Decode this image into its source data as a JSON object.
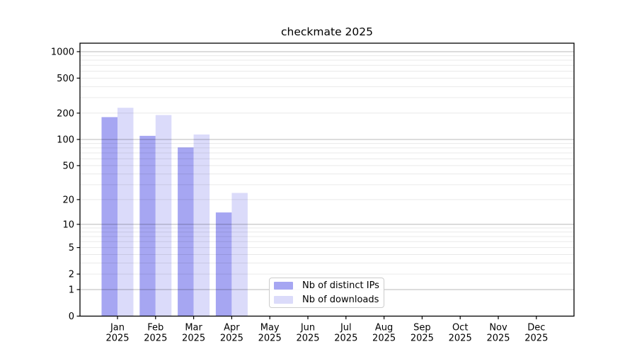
{
  "chart_data": {
    "type": "bar",
    "title": "checkmate 2025",
    "categories": [
      "Jan",
      "Feb",
      "Mar",
      "Apr",
      "May",
      "Jun",
      "Jul",
      "Aug",
      "Sep",
      "Oct",
      "Nov",
      "Dec"
    ],
    "xtick_year": "2025",
    "series": [
      {
        "name": "Nb of distinct IPs",
        "color": "#a6a6f2",
        "values": [
          180,
          110,
          81,
          14,
          null,
          null,
          null,
          null,
          null,
          null,
          null,
          null
        ]
      },
      {
        "name": "Nb of downloads",
        "color": "#dbdbfa",
        "values": [
          230,
          190,
          114,
          24,
          null,
          null,
          null,
          null,
          null,
          null,
          null,
          null
        ]
      }
    ],
    "yscale": "log1p",
    "yticks": [
      0,
      1,
      2,
      5,
      10,
      20,
      50,
      100,
      200,
      500,
      1000
    ],
    "ylim": [
      0,
      1250
    ],
    "xlabel": "",
    "ylabel": "",
    "grid": "both",
    "legend_position": "lower-center-inside",
    "colors": {
      "major_grid": "rgba(0,0,0,0.28)",
      "minor_grid": "rgba(0,0,0,0.085)",
      "axis": "#000000",
      "text": "#000000"
    }
  }
}
